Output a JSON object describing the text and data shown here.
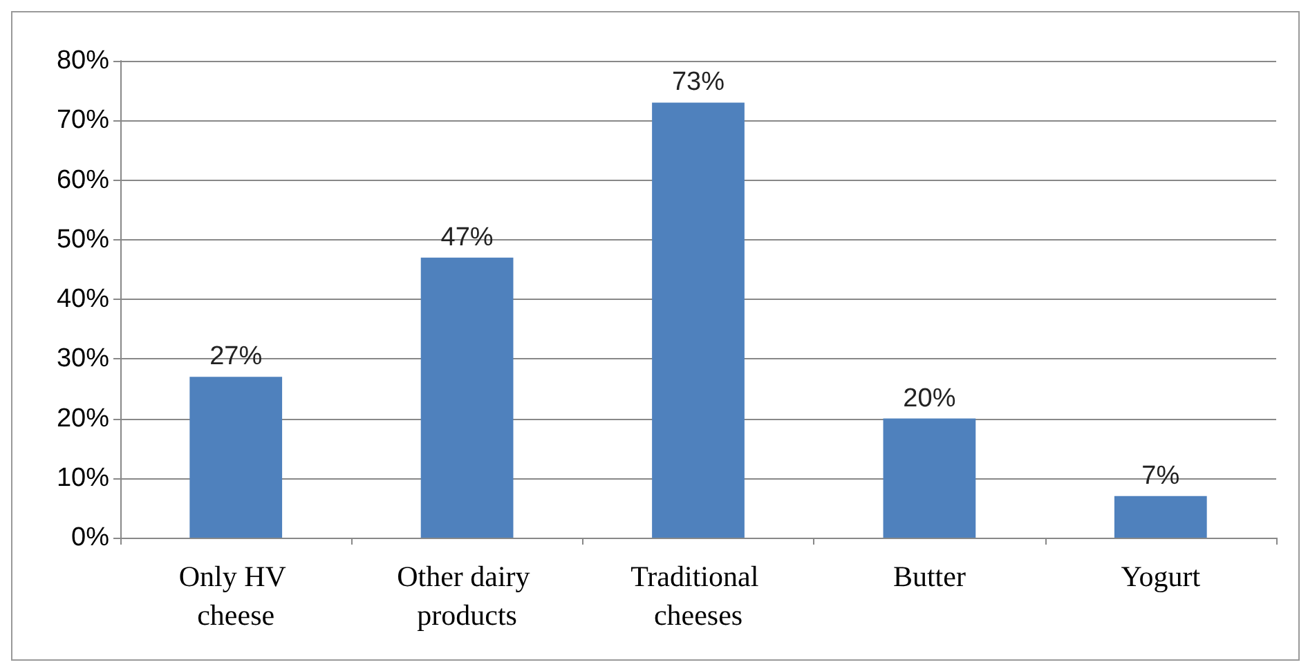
{
  "chart_data": {
    "type": "bar",
    "categories": [
      "Only HV cheese",
      "Other dairy products",
      "Traditional cheeses",
      "Butter",
      "Yogurt"
    ],
    "values": [
      27,
      47,
      73,
      20,
      7
    ],
    "value_labels": [
      "27%",
      "47%",
      "73%",
      "20%",
      "7%"
    ],
    "color": "#4f81bd",
    "ylim": [
      0,
      80
    ],
    "yticks": [
      {
        "value": 0,
        "label": "0%"
      },
      {
        "value": 10,
        "label": "10%"
      },
      {
        "value": 20,
        "label": "20%"
      },
      {
        "value": 30,
        "label": "30%"
      },
      {
        "value": 40,
        "label": "40%"
      },
      {
        "value": 50,
        "label": "50%"
      },
      {
        "value": 60,
        "label": "60%"
      },
      {
        "value": 70,
        "label": "70%"
      },
      {
        "value": 80,
        "label": "80%"
      }
    ],
    "grid": true
  }
}
